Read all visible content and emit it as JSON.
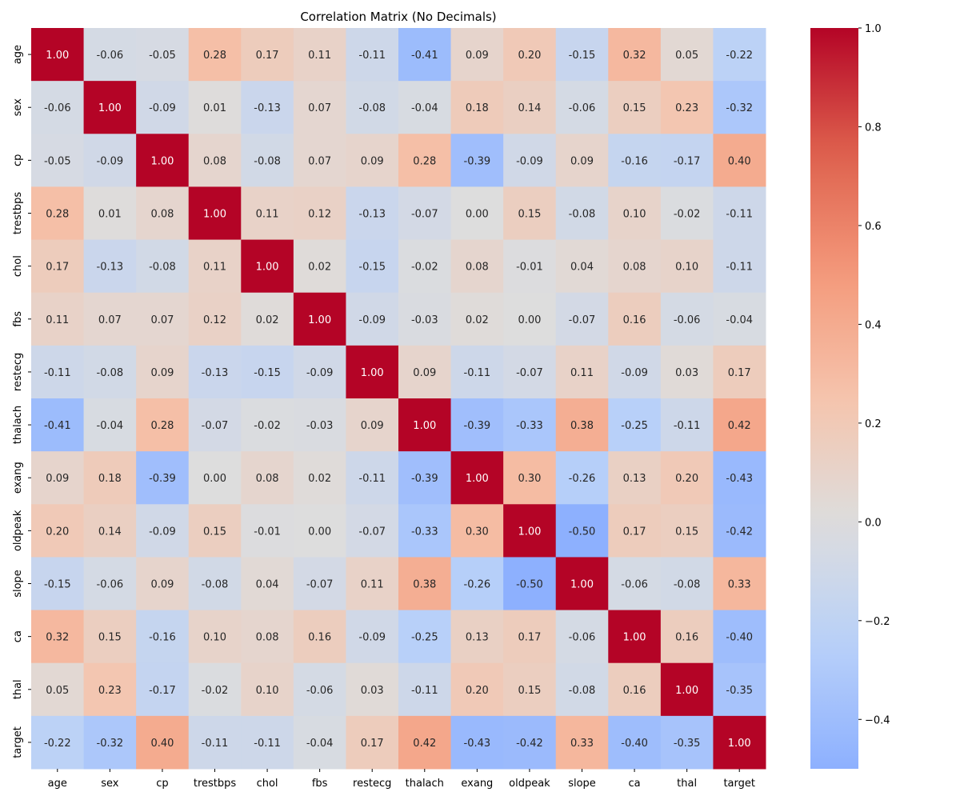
{
  "chart_data": {
    "type": "heatmap",
    "title": "Correlation Matrix (No Decimals)",
    "x_labels": [
      "age",
      "sex",
      "cp",
      "trestbps",
      "chol",
      "fbs",
      "restecg",
      "thalach",
      "exang",
      "oldpeak",
      "slope",
      "ca",
      "thal",
      "target"
    ],
    "y_labels": [
      "age",
      "sex",
      "cp",
      "trestbps",
      "chol",
      "fbs",
      "restecg",
      "thalach",
      "exang",
      "oldpeak",
      "slope",
      "ca",
      "thal",
      "target"
    ],
    "values": [
      [
        1.0,
        -0.06,
        -0.05,
        0.28,
        0.17,
        0.11,
        -0.11,
        -0.41,
        0.09,
        0.2,
        -0.15,
        0.32,
        0.05,
        -0.22
      ],
      [
        -0.06,
        1.0,
        -0.09,
        0.01,
        -0.13,
        0.07,
        -0.08,
        -0.04,
        0.18,
        0.14,
        -0.06,
        0.15,
        0.23,
        -0.32
      ],
      [
        -0.05,
        -0.09,
        1.0,
        0.08,
        -0.08,
        0.07,
        0.09,
        0.28,
        -0.39,
        -0.09,
        0.09,
        -0.16,
        -0.17,
        0.4
      ],
      [
        0.28,
        0.01,
        0.08,
        1.0,
        0.11,
        0.12,
        -0.13,
        -0.07,
        -0.0,
        0.15,
        -0.08,
        0.1,
        -0.02,
        -0.11
      ],
      [
        0.17,
        -0.13,
        -0.08,
        0.11,
        1.0,
        0.02,
        -0.15,
        -0.02,
        0.08,
        -0.01,
        0.04,
        0.08,
        0.1,
        -0.11
      ],
      [
        0.11,
        0.07,
        0.07,
        0.12,
        0.02,
        1.0,
        -0.09,
        -0.03,
        0.02,
        -0.0,
        -0.07,
        0.16,
        -0.06,
        -0.04
      ],
      [
        -0.11,
        -0.08,
        0.09,
        -0.13,
        -0.15,
        -0.09,
        1.0,
        0.09,
        -0.11,
        -0.07,
        0.11,
        -0.09,
        0.03,
        0.17
      ],
      [
        -0.41,
        -0.04,
        0.28,
        -0.07,
        -0.02,
        -0.03,
        0.09,
        1.0,
        -0.39,
        -0.33,
        0.38,
        -0.25,
        -0.11,
        0.42
      ],
      [
        0.09,
        0.18,
        -0.39,
        -0.0,
        0.08,
        0.02,
        -0.11,
        -0.39,
        1.0,
        0.3,
        -0.26,
        0.13,
        0.2,
        -0.43
      ],
      [
        0.2,
        0.14,
        -0.09,
        0.15,
        -0.01,
        -0.0,
        -0.07,
        -0.33,
        0.3,
        1.0,
        -0.5,
        0.17,
        0.15,
        -0.42
      ],
      [
        -0.15,
        -0.06,
        0.09,
        -0.08,
        0.04,
        -0.07,
        0.11,
        0.38,
        -0.26,
        -0.5,
        1.0,
        -0.06,
        -0.08,
        0.33
      ],
      [
        0.32,
        0.15,
        -0.16,
        0.1,
        0.08,
        0.16,
        -0.09,
        -0.25,
        0.13,
        0.17,
        -0.06,
        1.0,
        0.16,
        -0.4
      ],
      [
        0.05,
        0.23,
        -0.17,
        -0.02,
        0.1,
        -0.06,
        0.03,
        -0.11,
        0.2,
        0.15,
        -0.08,
        0.16,
        1.0,
        -0.35
      ],
      [
        -0.22,
        -0.32,
        0.4,
        -0.11,
        -0.11,
        -0.04,
        0.17,
        0.42,
        -0.43,
        -0.42,
        0.33,
        -0.4,
        -0.35,
        1.0
      ]
    ],
    "colormap": "coolwarm",
    "center": 0,
    "vmin": -0.5,
    "vmax": 1.0,
    "annotation_format": "0.00",
    "colorbar": {
      "ticks": [
        1.0,
        0.8,
        0.6,
        0.4,
        0.2,
        0.0,
        -0.2,
        -0.4
      ],
      "tick_labels": [
        "1.0",
        "0.8",
        "0.6",
        "0.4",
        "0.2",
        "0.0",
        "−0.2",
        "−0.4"
      ]
    }
  }
}
